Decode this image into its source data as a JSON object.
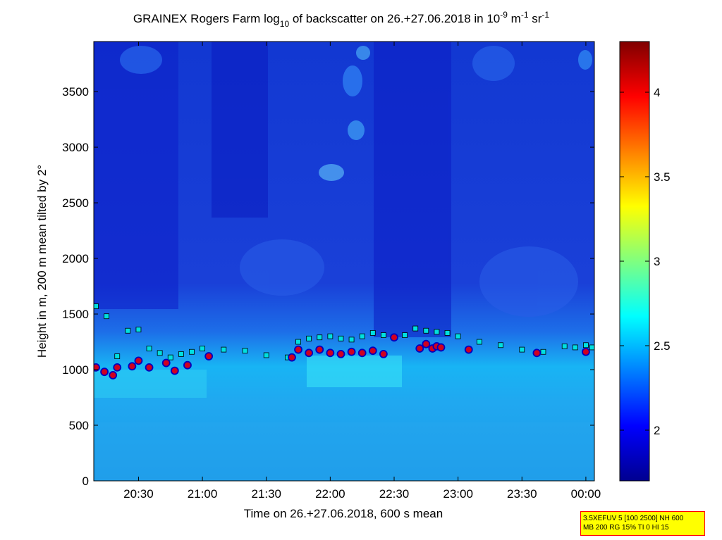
{
  "chart_data": {
    "type": "heatmap",
    "title": {
      "prefix": "GRAINEX Rogers Farm log",
      "sub1": "10",
      "mid1": " of backscatter on 26.+27.06.2018 in 10",
      "sup1": "-9",
      "mid2": " m",
      "sup2": "-1",
      "mid3": " sr",
      "sup3": "-1"
    },
    "xlabel": "Time on 26.+27.06.2018, 600 s mean",
    "ylabel": "Height in m, 200 m mean tilted by 2°",
    "x_range": [
      "2018-06-26 20:09",
      "2018-06-27 00:04"
    ],
    "x_ticks": [
      "20:30",
      "21:00",
      "21:30",
      "22:00",
      "22:30",
      "23:00",
      "23:30",
      "00:00"
    ],
    "y_range": [
      0,
      3950
    ],
    "y_ticks": [
      0,
      500,
      1000,
      1500,
      2000,
      2500,
      3000,
      3500
    ],
    "colorbar": {
      "range": [
        1.7,
        4.3
      ],
      "ticks": [
        "2",
        "2.5",
        "3",
        "3.5",
        "4"
      ],
      "colormap": "jet"
    },
    "colors": {
      "low_background": "#1630d8",
      "boundary_layer": "#12a8f0",
      "marker_square_fill": "#00e0e0",
      "marker_circle_fill": "#d00020",
      "marker_circle_edge": "#0000c0"
    },
    "series": [
      {
        "marker": "square",
        "x": [
          "20:10",
          "20:15",
          "20:20",
          "20:25",
          "20:30",
          "20:35",
          "20:40",
          "20:45",
          "20:50",
          "20:55",
          "21:00",
          "21:10",
          "21:20",
          "21:30",
          "21:40",
          "21:45",
          "21:50",
          "21:55",
          "22:00",
          "22:05",
          "22:10",
          "22:15",
          "22:20",
          "22:25",
          "22:30",
          "22:35",
          "22:40",
          "22:45",
          "22:50",
          "22:55",
          "23:00",
          "23:10",
          "23:20",
          "23:30",
          "23:40",
          "23:50",
          "23:55",
          "00:00",
          "00:03"
        ],
        "y": [
          1570,
          1480,
          1120,
          1350,
          1360,
          1190,
          1150,
          1110,
          1140,
          1160,
          1190,
          1180,
          1170,
          1130,
          1110,
          1250,
          1280,
          1290,
          1300,
          1280,
          1270,
          1300,
          1330,
          1310,
          1290,
          1310,
          1370,
          1350,
          1340,
          1330,
          1300,
          1250,
          1220,
          1180,
          1160,
          1210,
          1200,
          1220,
          1200
        ]
      },
      {
        "marker": "circle",
        "x": [
          "20:10",
          "20:14",
          "20:18",
          "20:20",
          "20:27",
          "20:30",
          "20:35",
          "20:43",
          "20:47",
          "20:53",
          "21:03",
          "21:42",
          "21:45",
          "21:50",
          "21:55",
          "22:00",
          "22:05",
          "22:10",
          "22:15",
          "22:20",
          "22:25",
          "22:30",
          "22:42",
          "22:45",
          "22:48",
          "22:50",
          "22:52",
          "23:05",
          "23:37",
          "00:00"
        ],
        "y": [
          1020,
          980,
          950,
          1020,
          1030,
          1080,
          1020,
          1060,
          990,
          1040,
          1120,
          1110,
          1180,
          1150,
          1180,
          1150,
          1140,
          1160,
          1150,
          1170,
          1140,
          1290,
          1190,
          1230,
          1190,
          1210,
          1200,
          1180,
          1150,
          1160
        ]
      }
    ]
  },
  "info_box": {
    "line1": "3.5XEFUV 5 [100 2500] NH 600",
    "line2": "MB 200 RG 15% TI 0 HI 15"
  }
}
